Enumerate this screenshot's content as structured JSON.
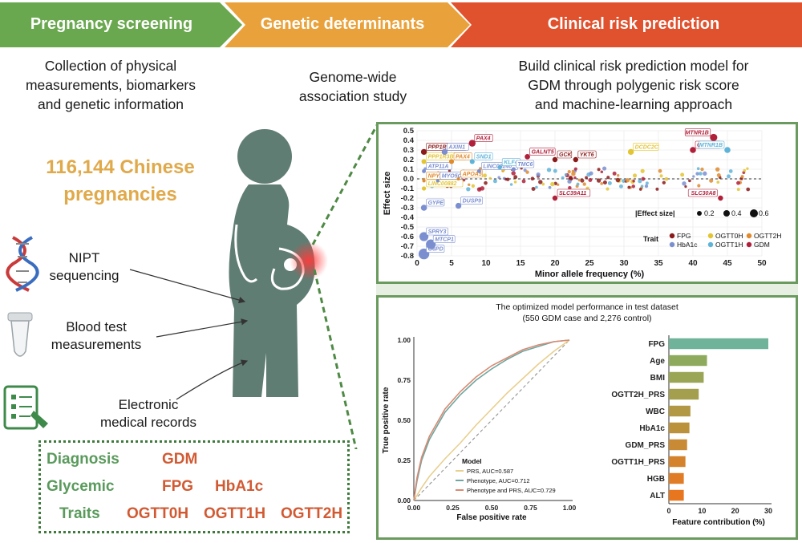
{
  "header": {
    "stage1": "Pregnancy screening",
    "stage2": "Genetic determinants",
    "stage3": "Clinical risk prediction",
    "colors": {
      "stage1": "#6aa84f",
      "stage2": "#e9a23b",
      "stage3": "#e0512d"
    }
  },
  "descriptions": {
    "stage1": [
      "Collection of physical",
      "measurements, biomarkers",
      "and genetic information"
    ],
    "stage2": [
      "Genome-wide",
      "association study"
    ],
    "stage3": [
      "Build clinical risk prediction model for",
      "GDM through polygenic risk score",
      "and machine-learning approach"
    ]
  },
  "cohort": {
    "line1": "116,144 Chinese",
    "line2": "pregnancies"
  },
  "data_sources": [
    {
      "icon": "dna-icon",
      "lines": [
        "NIPT",
        "sequencing"
      ]
    },
    {
      "icon": "test-tube-icon",
      "lines": [
        "Blood test",
        "measurements"
      ]
    },
    {
      "icon": "medical-record-icon",
      "lines": [
        "Electronic",
        "medical records"
      ]
    }
  ],
  "diagnosis": {
    "rows": [
      {
        "label": "Diagnosis",
        "values": [
          "GDM"
        ]
      },
      {
        "label": "Glycemic",
        "values": [
          "FPG",
          "HbA1c"
        ]
      },
      {
        "label": "Traits",
        "values": [
          "OGTT0H",
          "OGTT1H",
          "OGTT2H"
        ]
      }
    ]
  },
  "chart_data": [
    {
      "type": "scatter",
      "xlabel": "Minor allele frequency (%)",
      "ylabel": "Effect size",
      "xlim": [
        0,
        50
      ],
      "ylim": [
        -0.8,
        0.5
      ],
      "xticks": [
        "0",
        "5",
        "10",
        "15",
        "20",
        "25",
        "30",
        "35",
        "40",
        "45",
        "50"
      ],
      "yticks": [
        "0.5",
        "0.4",
        "0.3",
        "0.2",
        "0.1",
        "0.0",
        "-0.1",
        "-0.2",
        "-0.3",
        "-0.4",
        "-0.5",
        "-0.6",
        "-0.7",
        "-0.8"
      ],
      "size_legend_title": "|Effect size|",
      "size_legend": [
        "0.2",
        "0.4",
        "0.6"
      ],
      "trait_legend_title": "Trait",
      "traits": [
        {
          "name": "FPG",
          "color": "#8b1a1a"
        },
        {
          "name": "OGTT0H",
          "color": "#e3c431"
        },
        {
          "name": "OGTT2H",
          "color": "#e08a2e"
        },
        {
          "name": "HbA1c",
          "color": "#7b8fd0"
        },
        {
          "name": "OGTT1H",
          "color": "#5fb3d9"
        },
        {
          "name": "GDM",
          "color": "#b0203a"
        }
      ],
      "labeled_points": [
        {
          "gene": "PPP1R3B-DT",
          "x": 1,
          "y": 0.28,
          "trait": "FPG"
        },
        {
          "gene": "PPP1R3B-DT",
          "x": 1,
          "y": 0.18,
          "trait": "OGTT0H"
        },
        {
          "gene": "ATP11A",
          "x": 1,
          "y": 0.08,
          "trait": "HbA1c"
        },
        {
          "gene": "NPY2R",
          "x": 1,
          "y": -0.02,
          "trait": "OGTT2H"
        },
        {
          "gene": "LINC00882",
          "x": 1,
          "y": -0.1,
          "trait": "OGTT0H"
        },
        {
          "gene": "GYPE",
          "x": 1,
          "y": -0.3,
          "trait": "HbA1c"
        },
        {
          "gene": "SPRY3",
          "x": 1,
          "y": -0.6,
          "trait": "HbA1c"
        },
        {
          "gene": "G6PD",
          "x": 1,
          "y": -0.78,
          "trait": "HbA1c"
        },
        {
          "gene": "MTCP1",
          "x": 2,
          "y": -0.68,
          "trait": "HbA1c"
        },
        {
          "gene": "AXIN1",
          "x": 4,
          "y": 0.28,
          "trait": "HbA1c"
        },
        {
          "gene": "PAX4",
          "x": 8,
          "y": 0.37,
          "trait": "GDM"
        },
        {
          "gene": "PAX4",
          "x": 5,
          "y": 0.18,
          "trait": "OGTT2H"
        },
        {
          "gene": "MYO5C",
          "x": 3,
          "y": -0.02,
          "trait": "HbA1c"
        },
        {
          "gene": "APOA5",
          "x": 6,
          "y": 0.0,
          "trait": "OGTT2H"
        },
        {
          "gene": "SND1",
          "x": 8,
          "y": 0.18,
          "trait": "OGTT1H"
        },
        {
          "gene": "LINC00240",
          "x": 9,
          "y": 0.08,
          "trait": "HbA1c"
        },
        {
          "gene": "DUSP9",
          "x": 6,
          "y": -0.28,
          "trait": "HbA1c"
        },
        {
          "gene": "KLF4",
          "x": 12,
          "y": 0.12,
          "trait": "OGTT1H"
        },
        {
          "gene": "TMC6",
          "x": 14,
          "y": 0.1,
          "trait": "HbA1c"
        },
        {
          "gene": "GALNT5",
          "x": 16,
          "y": 0.23,
          "trait": "GDM"
        },
        {
          "gene": "GCK",
          "x": 20,
          "y": 0.2,
          "trait": "FPG"
        },
        {
          "gene": "YKT6",
          "x": 23,
          "y": 0.2,
          "trait": "FPG"
        },
        {
          "gene": "SLC39A11",
          "x": 20,
          "y": -0.2,
          "trait": "GDM"
        },
        {
          "gene": "DCDC2C",
          "x": 31,
          "y": 0.28,
          "trait": "OGTT0H"
        },
        {
          "gene": "MTNR1B",
          "x": 43,
          "y": 0.43,
          "trait": "GDM"
        },
        {
          "gene": "CDKAL1",
          "x": 40,
          "y": 0.3,
          "trait": "GDM"
        },
        {
          "gene": "MTNR1B",
          "x": 45,
          "y": 0.3,
          "trait": "OGTT1H"
        },
        {
          "gene": "SLC30A8",
          "x": 44,
          "y": -0.2,
          "trait": "GDM"
        }
      ]
    },
    {
      "type": "line",
      "title": "The optimized model performance in test dataset",
      "subtitle": "(550 GDM case and 2,276 control)",
      "xlabel": "False positive rate",
      "ylabel": "True positive rate",
      "xlim": [
        0,
        1
      ],
      "ylim": [
        0,
        1
      ],
      "xticks": [
        "0.00",
        "0.25",
        "0.50",
        "0.75",
        "1.00"
      ],
      "yticks": [
        "1.00",
        "0.75",
        "0.50",
        "0.25",
        "0.00"
      ],
      "legend_title": "Model",
      "series": [
        {
          "name": "PRS, AUC=0.587",
          "color": "#e8cf8e",
          "x": [
            0,
            0.05,
            0.1,
            0.2,
            0.3,
            0.4,
            0.5,
            0.6,
            0.7,
            0.8,
            0.9,
            1.0
          ],
          "y": [
            0,
            0.08,
            0.15,
            0.26,
            0.36,
            0.47,
            0.57,
            0.67,
            0.76,
            0.85,
            0.93,
            1.0
          ]
        },
        {
          "name": "Phenotype, AUC=0.712",
          "color": "#6fa6a0",
          "x": [
            0,
            0.02,
            0.05,
            0.1,
            0.2,
            0.3,
            0.4,
            0.5,
            0.6,
            0.7,
            0.8,
            0.9,
            1.0
          ],
          "y": [
            0,
            0.12,
            0.25,
            0.38,
            0.55,
            0.66,
            0.75,
            0.82,
            0.88,
            0.93,
            0.96,
            0.99,
            1.0
          ]
        },
        {
          "name": "Phenotype and PRS, AUC=0.729",
          "color": "#d98a72",
          "x": [
            0,
            0.02,
            0.05,
            0.1,
            0.2,
            0.3,
            0.4,
            0.5,
            0.6,
            0.7,
            0.8,
            0.9,
            1.0
          ],
          "y": [
            0,
            0.14,
            0.27,
            0.4,
            0.57,
            0.68,
            0.77,
            0.84,
            0.89,
            0.94,
            0.97,
            0.99,
            1.0
          ]
        }
      ]
    },
    {
      "type": "bar",
      "xlabel": "Feature contribution (%)",
      "xlim": [
        0,
        30
      ],
      "xticks": [
        "0",
        "10",
        "20",
        "30"
      ],
      "categories": [
        "FPG",
        "Age",
        "BMI",
        "OGTT2H_PRS",
        "WBC",
        "HbA1c",
        "GDM_PRS",
        "OGTT1H_PRS",
        "HGB",
        "ALT"
      ],
      "values": [
        30,
        11.5,
        10.5,
        9,
        6.5,
        6.2,
        5.5,
        5,
        4.5,
        4.5
      ],
      "colors": [
        "#6fb39a",
        "#8eaa5c",
        "#9aa655",
        "#a49f4f",
        "#b29844",
        "#bb913c",
        "#c98a35",
        "#d4832c",
        "#df7c25",
        "#e8761e"
      ]
    }
  ]
}
